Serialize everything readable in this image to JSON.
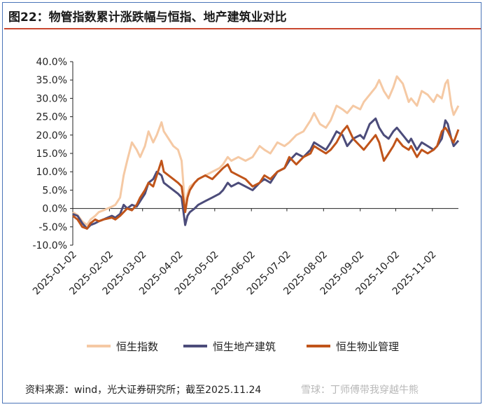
{
  "header": {
    "title": "图22：物管指数累计涨跌幅与恒指、地产建筑业对比"
  },
  "footer": {
    "source": "资料来源：wind，光大证券研究所；截至2025.11.24",
    "watermark": "雪球：丁师傅带我穿越牛熊"
  },
  "colors": {
    "frame": "#4a74b8",
    "title_rule": "#c9472f"
  },
  "chart_data": {
    "type": "line",
    "title": "",
    "xlabel": "",
    "ylabel": "",
    "ylim": [
      -10,
      40
    ],
    "yticks": [
      -10,
      -5,
      0,
      5,
      10,
      15,
      20,
      25,
      30,
      35,
      40
    ],
    "ytick_labels": [
      "-10.0%",
      "-5.0%",
      "0.0%",
      "5.0%",
      "10.0%",
      "15.0%",
      "20.0%",
      "25.0%",
      "30.0%",
      "35.0%",
      "40.0%"
    ],
    "xlim": [
      "2025-01-02",
      "2025-11-24"
    ],
    "xtick_labels": [
      "2025-01-02",
      "2025-02-02",
      "2025-03-02",
      "2025-04-02",
      "2025-05-02",
      "2025-06-02",
      "2025-07-02",
      "2025-08-02",
      "2025-09-02",
      "2025-10-02",
      "2025-11-02"
    ],
    "grid": false,
    "legend_position": "bottom",
    "series": [
      {
        "name": "恒生指数",
        "color": "#f5c9a4",
        "points": [
          [
            "2025-01-02",
            -1
          ],
          [
            "2025-01-06",
            -1.8
          ],
          [
            "2025-01-10",
            -3.5
          ],
          [
            "2025-01-14",
            -4.5
          ],
          [
            "2025-01-17",
            -3
          ],
          [
            "2025-01-21",
            -2
          ],
          [
            "2025-01-24",
            -1
          ],
          [
            "2025-01-28",
            -0.5
          ],
          [
            "2025-02-04",
            0.5
          ],
          [
            "2025-02-07",
            1
          ],
          [
            "2025-02-11",
            3
          ],
          [
            "2025-02-14",
            9
          ],
          [
            "2025-02-17",
            13
          ],
          [
            "2025-02-21",
            18
          ],
          [
            "2025-02-25",
            16
          ],
          [
            "2025-02-28",
            14
          ],
          [
            "2025-03-04",
            17
          ],
          [
            "2025-03-07",
            21
          ],
          [
            "2025-03-11",
            18
          ],
          [
            "2025-03-14",
            20
          ],
          [
            "2025-03-18",
            23.5
          ],
          [
            "2025-03-20",
            21
          ],
          [
            "2025-03-24",
            19
          ],
          [
            "2025-03-28",
            17
          ],
          [
            "2025-04-01",
            16
          ],
          [
            "2025-04-04",
            13
          ],
          [
            "2025-04-07",
            0
          ],
          [
            "2025-04-09",
            4
          ],
          [
            "2025-04-11",
            6
          ],
          [
            "2025-04-15",
            7
          ],
          [
            "2025-04-18",
            8
          ],
          [
            "2025-04-24",
            9
          ],
          [
            "2025-04-30",
            10
          ],
          [
            "2025-05-06",
            11
          ],
          [
            "2025-05-09",
            12
          ],
          [
            "2025-05-13",
            14
          ],
          [
            "2025-05-16",
            13
          ],
          [
            "2025-05-22",
            14
          ],
          [
            "2025-05-28",
            13
          ],
          [
            "2025-06-03",
            14
          ],
          [
            "2025-06-09",
            17
          ],
          [
            "2025-06-13",
            16
          ],
          [
            "2025-06-18",
            15
          ],
          [
            "2025-06-24",
            18
          ],
          [
            "2025-06-30",
            17
          ],
          [
            "2025-07-04",
            18
          ],
          [
            "2025-07-10",
            20
          ],
          [
            "2025-07-16",
            21
          ],
          [
            "2025-07-22",
            24
          ],
          [
            "2025-07-25",
            26
          ],
          [
            "2025-07-30",
            23
          ],
          [
            "2025-08-04",
            22
          ],
          [
            "2025-08-08",
            24
          ],
          [
            "2025-08-13",
            28
          ],
          [
            "2025-08-18",
            27
          ],
          [
            "2025-08-22",
            26
          ],
          [
            "2025-08-27",
            28
          ],
          [
            "2025-09-02",
            27
          ],
          [
            "2025-09-05",
            29
          ],
          [
            "2025-09-10",
            31
          ],
          [
            "2025-09-15",
            33
          ],
          [
            "2025-09-18",
            35
          ],
          [
            "2025-09-22",
            32
          ],
          [
            "2025-09-26",
            30
          ],
          [
            "2025-09-30",
            33
          ],
          [
            "2025-10-03",
            36
          ],
          [
            "2025-10-08",
            34
          ],
          [
            "2025-10-13",
            29
          ],
          [
            "2025-10-15",
            30
          ],
          [
            "2025-10-20",
            28
          ],
          [
            "2025-10-24",
            32
          ],
          [
            "2025-10-29",
            31
          ],
          [
            "2025-11-03",
            29
          ],
          [
            "2025-11-06",
            31
          ],
          [
            "2025-11-10",
            30
          ],
          [
            "2025-11-13",
            34
          ],
          [
            "2025-11-15",
            35
          ],
          [
            "2025-11-18",
            28
          ],
          [
            "2025-11-20",
            25.5
          ],
          [
            "2025-11-24",
            28
          ]
        ]
      },
      {
        "name": "恒生地产建筑",
        "color": "#4c4c7a",
        "points": [
          [
            "2025-01-02",
            -1.5
          ],
          [
            "2025-01-06",
            -2
          ],
          [
            "2025-01-10",
            -4
          ],
          [
            "2025-01-14",
            -5.5
          ],
          [
            "2025-01-17",
            -4.5
          ],
          [
            "2025-01-21",
            -4
          ],
          [
            "2025-01-24",
            -3.5
          ],
          [
            "2025-01-28",
            -3
          ],
          [
            "2025-02-04",
            -2
          ],
          [
            "2025-02-07",
            -2.5
          ],
          [
            "2025-02-11",
            -1.5
          ],
          [
            "2025-02-14",
            1
          ],
          [
            "2025-02-17",
            0
          ],
          [
            "2025-02-21",
            1
          ],
          [
            "2025-02-25",
            0.5
          ],
          [
            "2025-02-28",
            2
          ],
          [
            "2025-03-04",
            4
          ],
          [
            "2025-03-07",
            7
          ],
          [
            "2025-03-11",
            8
          ],
          [
            "2025-03-14",
            10
          ],
          [
            "2025-03-18",
            9
          ],
          [
            "2025-03-20",
            7
          ],
          [
            "2025-03-24",
            6
          ],
          [
            "2025-03-28",
            5
          ],
          [
            "2025-04-01",
            4
          ],
          [
            "2025-04-04",
            3
          ],
          [
            "2025-04-07",
            -4.5
          ],
          [
            "2025-04-09",
            -2
          ],
          [
            "2025-04-11",
            -1
          ],
          [
            "2025-04-15",
            0
          ],
          [
            "2025-04-18",
            1
          ],
          [
            "2025-04-24",
            2
          ],
          [
            "2025-04-30",
            3
          ],
          [
            "2025-05-06",
            4
          ],
          [
            "2025-05-09",
            5
          ],
          [
            "2025-05-13",
            7
          ],
          [
            "2025-05-16",
            6
          ],
          [
            "2025-05-22",
            7
          ],
          [
            "2025-05-28",
            6
          ],
          [
            "2025-06-03",
            5
          ],
          [
            "2025-06-09",
            7
          ],
          [
            "2025-06-13",
            8
          ],
          [
            "2025-06-18",
            7
          ],
          [
            "2025-06-24",
            10
          ],
          [
            "2025-06-30",
            11
          ],
          [
            "2025-07-04",
            13
          ],
          [
            "2025-07-10",
            15
          ],
          [
            "2025-07-16",
            14
          ],
          [
            "2025-07-22",
            16
          ],
          [
            "2025-07-25",
            18
          ],
          [
            "2025-07-30",
            17
          ],
          [
            "2025-08-04",
            16
          ],
          [
            "2025-08-08",
            18
          ],
          [
            "2025-08-13",
            21
          ],
          [
            "2025-08-18",
            20
          ],
          [
            "2025-08-22",
            17
          ],
          [
            "2025-08-27",
            19
          ],
          [
            "2025-09-02",
            20
          ],
          [
            "2025-09-05",
            19
          ],
          [
            "2025-09-10",
            23
          ],
          [
            "2025-09-15",
            24.5
          ],
          [
            "2025-09-18",
            22
          ],
          [
            "2025-09-22",
            20
          ],
          [
            "2025-09-26",
            19
          ],
          [
            "2025-09-30",
            21
          ],
          [
            "2025-10-03",
            22
          ],
          [
            "2025-10-08",
            20
          ],
          [
            "2025-10-13",
            18
          ],
          [
            "2025-10-15",
            19
          ],
          [
            "2025-10-20",
            16
          ],
          [
            "2025-10-24",
            18
          ],
          [
            "2025-10-29",
            17
          ],
          [
            "2025-11-03",
            16
          ],
          [
            "2025-11-06",
            17
          ],
          [
            "2025-11-10",
            19
          ],
          [
            "2025-11-13",
            24
          ],
          [
            "2025-11-15",
            23
          ],
          [
            "2025-11-18",
            19
          ],
          [
            "2025-11-20",
            17
          ],
          [
            "2025-11-24",
            18.5
          ]
        ]
      },
      {
        "name": "恒生物业管理",
        "color": "#c0541a",
        "points": [
          [
            "2025-01-02",
            -2
          ],
          [
            "2025-01-06",
            -3
          ],
          [
            "2025-01-10",
            -5
          ],
          [
            "2025-01-14",
            -5.5
          ],
          [
            "2025-01-17",
            -4
          ],
          [
            "2025-01-21",
            -3
          ],
          [
            "2025-01-24",
            -3.5
          ],
          [
            "2025-01-28",
            -3
          ],
          [
            "2025-02-04",
            -2.5
          ],
          [
            "2025-02-07",
            -3
          ],
          [
            "2025-02-11",
            -2
          ],
          [
            "2025-02-14",
            -1
          ],
          [
            "2025-02-17",
            0
          ],
          [
            "2025-02-21",
            -0.5
          ],
          [
            "2025-02-25",
            1
          ],
          [
            "2025-02-28",
            3
          ],
          [
            "2025-03-04",
            5
          ],
          [
            "2025-03-07",
            7
          ],
          [
            "2025-03-11",
            6
          ],
          [
            "2025-03-14",
            9
          ],
          [
            "2025-03-18",
            13
          ],
          [
            "2025-03-20",
            10
          ],
          [
            "2025-03-24",
            9
          ],
          [
            "2025-03-28",
            8
          ],
          [
            "2025-04-01",
            7
          ],
          [
            "2025-04-04",
            6
          ],
          [
            "2025-04-07",
            -1
          ],
          [
            "2025-04-09",
            3
          ],
          [
            "2025-04-11",
            5
          ],
          [
            "2025-04-15",
            7
          ],
          [
            "2025-04-18",
            8
          ],
          [
            "2025-04-24",
            9
          ],
          [
            "2025-04-30",
            8
          ],
          [
            "2025-05-06",
            10
          ],
          [
            "2025-05-09",
            11
          ],
          [
            "2025-05-13",
            12
          ],
          [
            "2025-05-16",
            10
          ],
          [
            "2025-05-22",
            9
          ],
          [
            "2025-05-28",
            8
          ],
          [
            "2025-06-03",
            6
          ],
          [
            "2025-06-09",
            7
          ],
          [
            "2025-06-13",
            9
          ],
          [
            "2025-06-18",
            8
          ],
          [
            "2025-06-24",
            10
          ],
          [
            "2025-06-30",
            11
          ],
          [
            "2025-07-04",
            14
          ],
          [
            "2025-07-10",
            12
          ],
          [
            "2025-07-16",
            14
          ],
          [
            "2025-07-22",
            15
          ],
          [
            "2025-07-25",
            17
          ],
          [
            "2025-07-30",
            16
          ],
          [
            "2025-08-04",
            15
          ],
          [
            "2025-08-08",
            16
          ],
          [
            "2025-08-13",
            18
          ],
          [
            "2025-08-18",
            21
          ],
          [
            "2025-08-22",
            22.5
          ],
          [
            "2025-08-27",
            19
          ],
          [
            "2025-09-02",
            17
          ],
          [
            "2025-09-05",
            16
          ],
          [
            "2025-09-10",
            18
          ],
          [
            "2025-09-15",
            20
          ],
          [
            "2025-09-18",
            18
          ],
          [
            "2025-09-22",
            13
          ],
          [
            "2025-09-26",
            15
          ],
          [
            "2025-09-30",
            17
          ],
          [
            "2025-10-03",
            19
          ],
          [
            "2025-10-08",
            17
          ],
          [
            "2025-10-13",
            16
          ],
          [
            "2025-10-15",
            17
          ],
          [
            "2025-10-20",
            14
          ],
          [
            "2025-10-24",
            16
          ],
          [
            "2025-10-29",
            15
          ],
          [
            "2025-11-03",
            16
          ],
          [
            "2025-11-06",
            17
          ],
          [
            "2025-11-10",
            21
          ],
          [
            "2025-11-13",
            22
          ],
          [
            "2025-11-15",
            21
          ],
          [
            "2025-11-18",
            19
          ],
          [
            "2025-11-20",
            18
          ],
          [
            "2025-11-24",
            21.5
          ]
        ]
      }
    ]
  }
}
